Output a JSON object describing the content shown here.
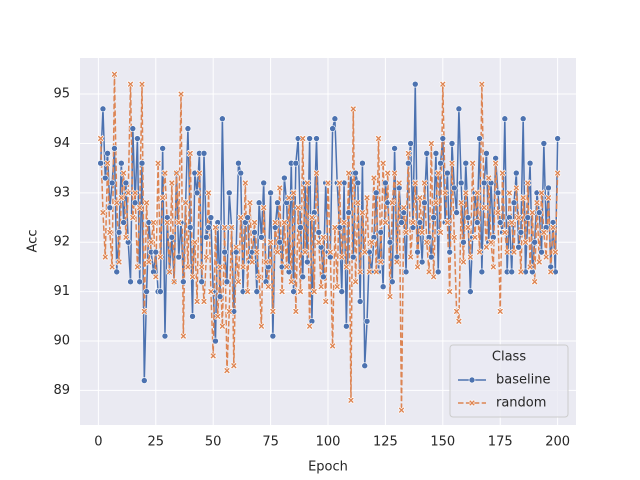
{
  "chart_data": {
    "type": "line",
    "x_label": "Epoch",
    "y_label": "Acc",
    "x": [
      1,
      2,
      3,
      4,
      5,
      6,
      7,
      8,
      9,
      10,
      11,
      12,
      13,
      14,
      15,
      16,
      17,
      18,
      19,
      20,
      21,
      22,
      23,
      24,
      25,
      26,
      27,
      28,
      29,
      30,
      31,
      32,
      33,
      34,
      35,
      36,
      37,
      38,
      39,
      40,
      41,
      42,
      43,
      44,
      45,
      46,
      47,
      48,
      49,
      50,
      51,
      52,
      53,
      54,
      55,
      56,
      57,
      58,
      59,
      60,
      61,
      62,
      63,
      64,
      65,
      66,
      67,
      68,
      69,
      70,
      71,
      72,
      73,
      74,
      75,
      76,
      77,
      78,
      79,
      80,
      81,
      82,
      83,
      84,
      85,
      86,
      87,
      88,
      89,
      90,
      91,
      92,
      93,
      94,
      95,
      96,
      97,
      98,
      99,
      100,
      101,
      102,
      103,
      104,
      105,
      106,
      107,
      108,
      109,
      110,
      111,
      112,
      113,
      114,
      115,
      116,
      117,
      118,
      119,
      120,
      121,
      122,
      123,
      124,
      125,
      126,
      127,
      128,
      129,
      130,
      131,
      132,
      133,
      134,
      135,
      136,
      137,
      138,
      139,
      140,
      141,
      142,
      143,
      144,
      145,
      146,
      147,
      148,
      149,
      150,
      151,
      152,
      153,
      154,
      155,
      156,
      157,
      158,
      159,
      160,
      161,
      162,
      163,
      164,
      165,
      166,
      167,
      168,
      169,
      170,
      171,
      172,
      173,
      174,
      175,
      176,
      177,
      178,
      179,
      180,
      181,
      182,
      183,
      184,
      185,
      186,
      187,
      188,
      189,
      190,
      191,
      192,
      193,
      194,
      195,
      196,
      197,
      198,
      199,
      200
    ],
    "series": [
      {
        "name": "baseline",
        "color": "#4c72b0",
        "marker": "circle",
        "dashed": false,
        "values": [
          93.6,
          94.7,
          93.3,
          93.8,
          92.7,
          93.2,
          93.9,
          91.4,
          92.2,
          93.6,
          92.4,
          93.2,
          92.0,
          91.2,
          94.3,
          92.8,
          94.1,
          91.2,
          93.6,
          89.2,
          91.0,
          92.4,
          91.8,
          91.4,
          91.8,
          91.0,
          91.0,
          93.9,
          90.1,
          92.5,
          91.4,
          92.1,
          91.2,
          93.4,
          91.7,
          92.4,
          91.2,
          92.8,
          94.3,
          92.3,
          90.5,
          93.4,
          93.0,
          93.8,
          91.2,
          93.8,
          92.1,
          92.3,
          92.5,
          91.0,
          90.0,
          92.4,
          90.9,
          94.5,
          91.8,
          91.2,
          93.0,
          92.3,
          90.6,
          91.8,
          93.6,
          93.4,
          91.0,
          92.4,
          92.5,
          91.6,
          91.8,
          92.2,
          91.0,
          92.8,
          92.1,
          93.2,
          91.2,
          91.5,
          93.0,
          90.1,
          92.3,
          92.8,
          92.0,
          91.5,
          93.3,
          92.8,
          91.4,
          93.6,
          91.0,
          93.6,
          94.1,
          92.3,
          91.3,
          93.2,
          91.6,
          94.1,
          90.4,
          92.6,
          94.1,
          92.2,
          91.9,
          91.3,
          93.2,
          91.8,
          91.7,
          94.3,
          94.5,
          93.2,
          92.3,
          91.0,
          93.2,
          90.3,
          92.6,
          93.4,
          91.7,
          93.4,
          93.2,
          90.8,
          93.6,
          89.5,
          90.4,
          91.8,
          91.4,
          92.1,
          93.0,
          91.4,
          92.2,
          91.1,
          93.2,
          92.8,
          92.0,
          91.2,
          93.9,
          91.7,
          93.1,
          92.4,
          92.6,
          91.4,
          93.6,
          94.0,
          92.3,
          95.2,
          91.8,
          92.4,
          91.6,
          92.8,
          93.8,
          92.1,
          91.7,
          92.5,
          93.8,
          91.4,
          93.6,
          94.1,
          92.4,
          93.4,
          91.8,
          94.0,
          93.1,
          92.6,
          94.7,
          93.2,
          92.0,
          93.6,
          92.5,
          91.0,
          92.1,
          93.0,
          92.4,
          94.1,
          91.4,
          93.2,
          93.8,
          92.0,
          93.2,
          92.1,
          93.7,
          93.0,
          92.4,
          92.2,
          94.5,
          91.4,
          92.5,
          91.4,
          92.8,
          93.4,
          91.9,
          92.2,
          94.5,
          91.4,
          92.5,
          93.6,
          91.4,
          92.0,
          93.0,
          92.6,
          91.8,
          94.0,
          92.3,
          93.1,
          91.5,
          92.4,
          91.4,
          94.1
        ]
      },
      {
        "name": "random",
        "color": "#dd8452",
        "marker": "x",
        "dashed": true,
        "values": [
          94.1,
          92.6,
          91.7,
          93.6,
          92.2,
          91.5,
          95.4,
          92.8,
          91.6,
          92.9,
          93.4,
          92.1,
          93.0,
          95.2,
          92.5,
          93.0,
          91.5,
          92.7,
          95.2,
          90.6,
          92.8,
          91.6,
          92.0,
          92.4,
          91.3,
          93.6,
          91.7,
          92.9,
          93.4,
          92.4,
          91.4,
          93.2,
          91.2,
          93.4,
          92.4,
          95.0,
          90.1,
          92.8,
          91.5,
          93.8,
          91.3,
          92.0,
          90.8,
          93.4,
          91.5,
          90.8,
          91.7,
          93.0,
          91.0,
          89.7,
          92.3,
          90.5,
          91.5,
          90.3,
          92.3,
          89.4,
          90.6,
          92.3,
          89.5,
          91.9,
          91.2,
          92.5,
          91.5,
          93.2,
          91.0,
          92.8,
          91.6,
          92.4,
          91.8,
          91.3,
          90.3,
          92.7,
          91.6,
          91.1,
          92.0,
          90.6,
          92.4,
          91.8,
          93.1,
          91.0,
          92.4,
          91.5,
          92.9,
          91.2,
          93.0,
          90.6,
          92.7,
          91.0,
          94.1,
          91.8,
          93.2,
          90.3,
          92.5,
          91.0,
          93.4,
          92.0,
          91.1,
          92.1,
          90.8,
          93.2,
          91.8,
          89.9,
          92.3,
          91.1,
          93.2,
          91.7,
          92.4,
          91.5,
          93.4,
          88.8,
          94.7,
          91.2,
          92.8,
          91.4,
          92.6,
          91.8,
          92.9,
          91.4,
          92.0,
          93.3,
          91.4,
          94.1,
          91.6,
          93.6,
          92.4,
          93.4,
          90.9,
          92.8,
          93.4,
          91.6,
          93.2,
          88.6,
          92.7,
          92.2,
          93.8,
          91.7,
          92.4,
          93.2,
          91.5,
          92.9,
          92.2,
          93.2,
          92.0,
          91.4,
          94.0,
          91.3,
          92.8,
          93.4,
          92.2,
          95.2,
          93.0,
          92.4,
          91.0,
          93.6,
          92.1,
          90.6,
          90.4,
          92.8,
          91.6,
          93.0,
          92.3,
          91.7,
          93.6,
          92.1,
          93.0,
          91.8,
          95.2,
          92.7,
          91.9,
          93.3,
          92.0,
          91.5,
          93.6,
          92.6,
          90.6,
          93.4,
          92.2,
          91.8,
          93.0,
          92.4,
          91.8,
          93.1,
          92.5,
          91.4,
          92.9,
          92.0,
          93.2,
          91.5,
          92.6,
          91.2,
          92.8,
          91.6,
          93.0,
          92.2,
          91.7,
          92.9,
          91.4,
          92.3,
          91.8,
          93.4
        ]
      }
    ],
    "legend_title": "Class",
    "legend_position": "lower right",
    "xlim": [
      -8,
      208
    ],
    "ylim": [
      88.3,
      95.73
    ],
    "xticks": [
      0,
      25,
      50,
      75,
      100,
      125,
      150,
      175,
      200
    ],
    "yticks": [
      89,
      90,
      91,
      92,
      93,
      94,
      95
    ],
    "grid": true
  }
}
